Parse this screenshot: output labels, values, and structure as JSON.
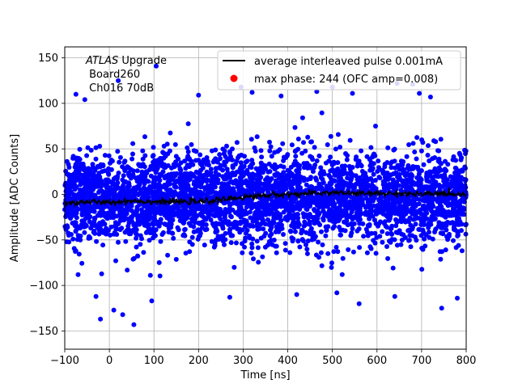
{
  "chart_data": {
    "type": "scatter",
    "xlabel": "Time [ns]",
    "ylabel": "Amplitude [ADC Counts]",
    "xlim": [
      -100,
      800
    ],
    "ylim": [
      -170,
      162
    ],
    "xticks": [
      "−100",
      "0",
      "100",
      "200",
      "300",
      "400",
      "500",
      "600",
      "700",
      "800"
    ],
    "yticks": [
      "−150",
      "−100",
      "−50",
      "0",
      "50",
      "100",
      "150"
    ],
    "grid": true,
    "legend_placement": "top-right",
    "annotation": {
      "line1_italic": "ATLAS",
      "line1_rest": " Upgrade",
      "line2": " Board260",
      "line3": " Ch016 70dB"
    },
    "colors": {
      "scatter": "#0000ff",
      "line": "#000000",
      "legend_marker": "#ff0000"
    },
    "series": [
      {
        "name": "average interleaved pulse 0.001mA",
        "kind": "line",
        "x": [
          -100,
          -50,
          0,
          50,
          100,
          150,
          200,
          250,
          300,
          350,
          400,
          450,
          500,
          550,
          600,
          650,
          700,
          750,
          800
        ],
        "y": [
          -10,
          -8,
          -9,
          -7,
          -8,
          -8,
          -8,
          -6,
          -3,
          -1,
          0,
          1,
          2,
          1,
          1,
          1,
          0,
          1,
          0
        ]
      },
      {
        "name": "max phase: 244 (OFC amp=0.008)",
        "kind": "scatter",
        "x_range": [
          -100,
          800
        ],
        "center": -5,
        "spread": 25,
        "outliers": [
          {
            "x": -75,
            "y": 110
          },
          {
            "x": -55,
            "y": 104
          },
          {
            "x": 20,
            "y": 125
          },
          {
            "x": -20,
            "y": -137
          },
          {
            "x": 55,
            "y": -143
          },
          {
            "x": 10,
            "y": -127
          },
          {
            "x": 30,
            "y": -132
          },
          {
            "x": 95,
            "y": -117
          },
          {
            "x": 200,
            "y": 109
          },
          {
            "x": 295,
            "y": 118
          },
          {
            "x": 320,
            "y": 112
          },
          {
            "x": 385,
            "y": 108
          },
          {
            "x": 465,
            "y": 113
          },
          {
            "x": 500,
            "y": 118
          },
          {
            "x": 545,
            "y": 111
          },
          {
            "x": 645,
            "y": 122
          },
          {
            "x": 680,
            "y": 121
          },
          {
            "x": 695,
            "y": 111
          },
          {
            "x": 720,
            "y": 107
          },
          {
            "x": 560,
            "y": -120
          },
          {
            "x": 640,
            "y": -112
          },
          {
            "x": 745,
            "y": -125
          },
          {
            "x": 780,
            "y": -114
          },
          {
            "x": 510,
            "y": -108
          },
          {
            "x": 105,
            "y": 141
          },
          {
            "x": -30,
            "y": -112
          },
          {
            "x": 270,
            "y": -113
          },
          {
            "x": 420,
            "y": -110
          }
        ]
      }
    ]
  }
}
